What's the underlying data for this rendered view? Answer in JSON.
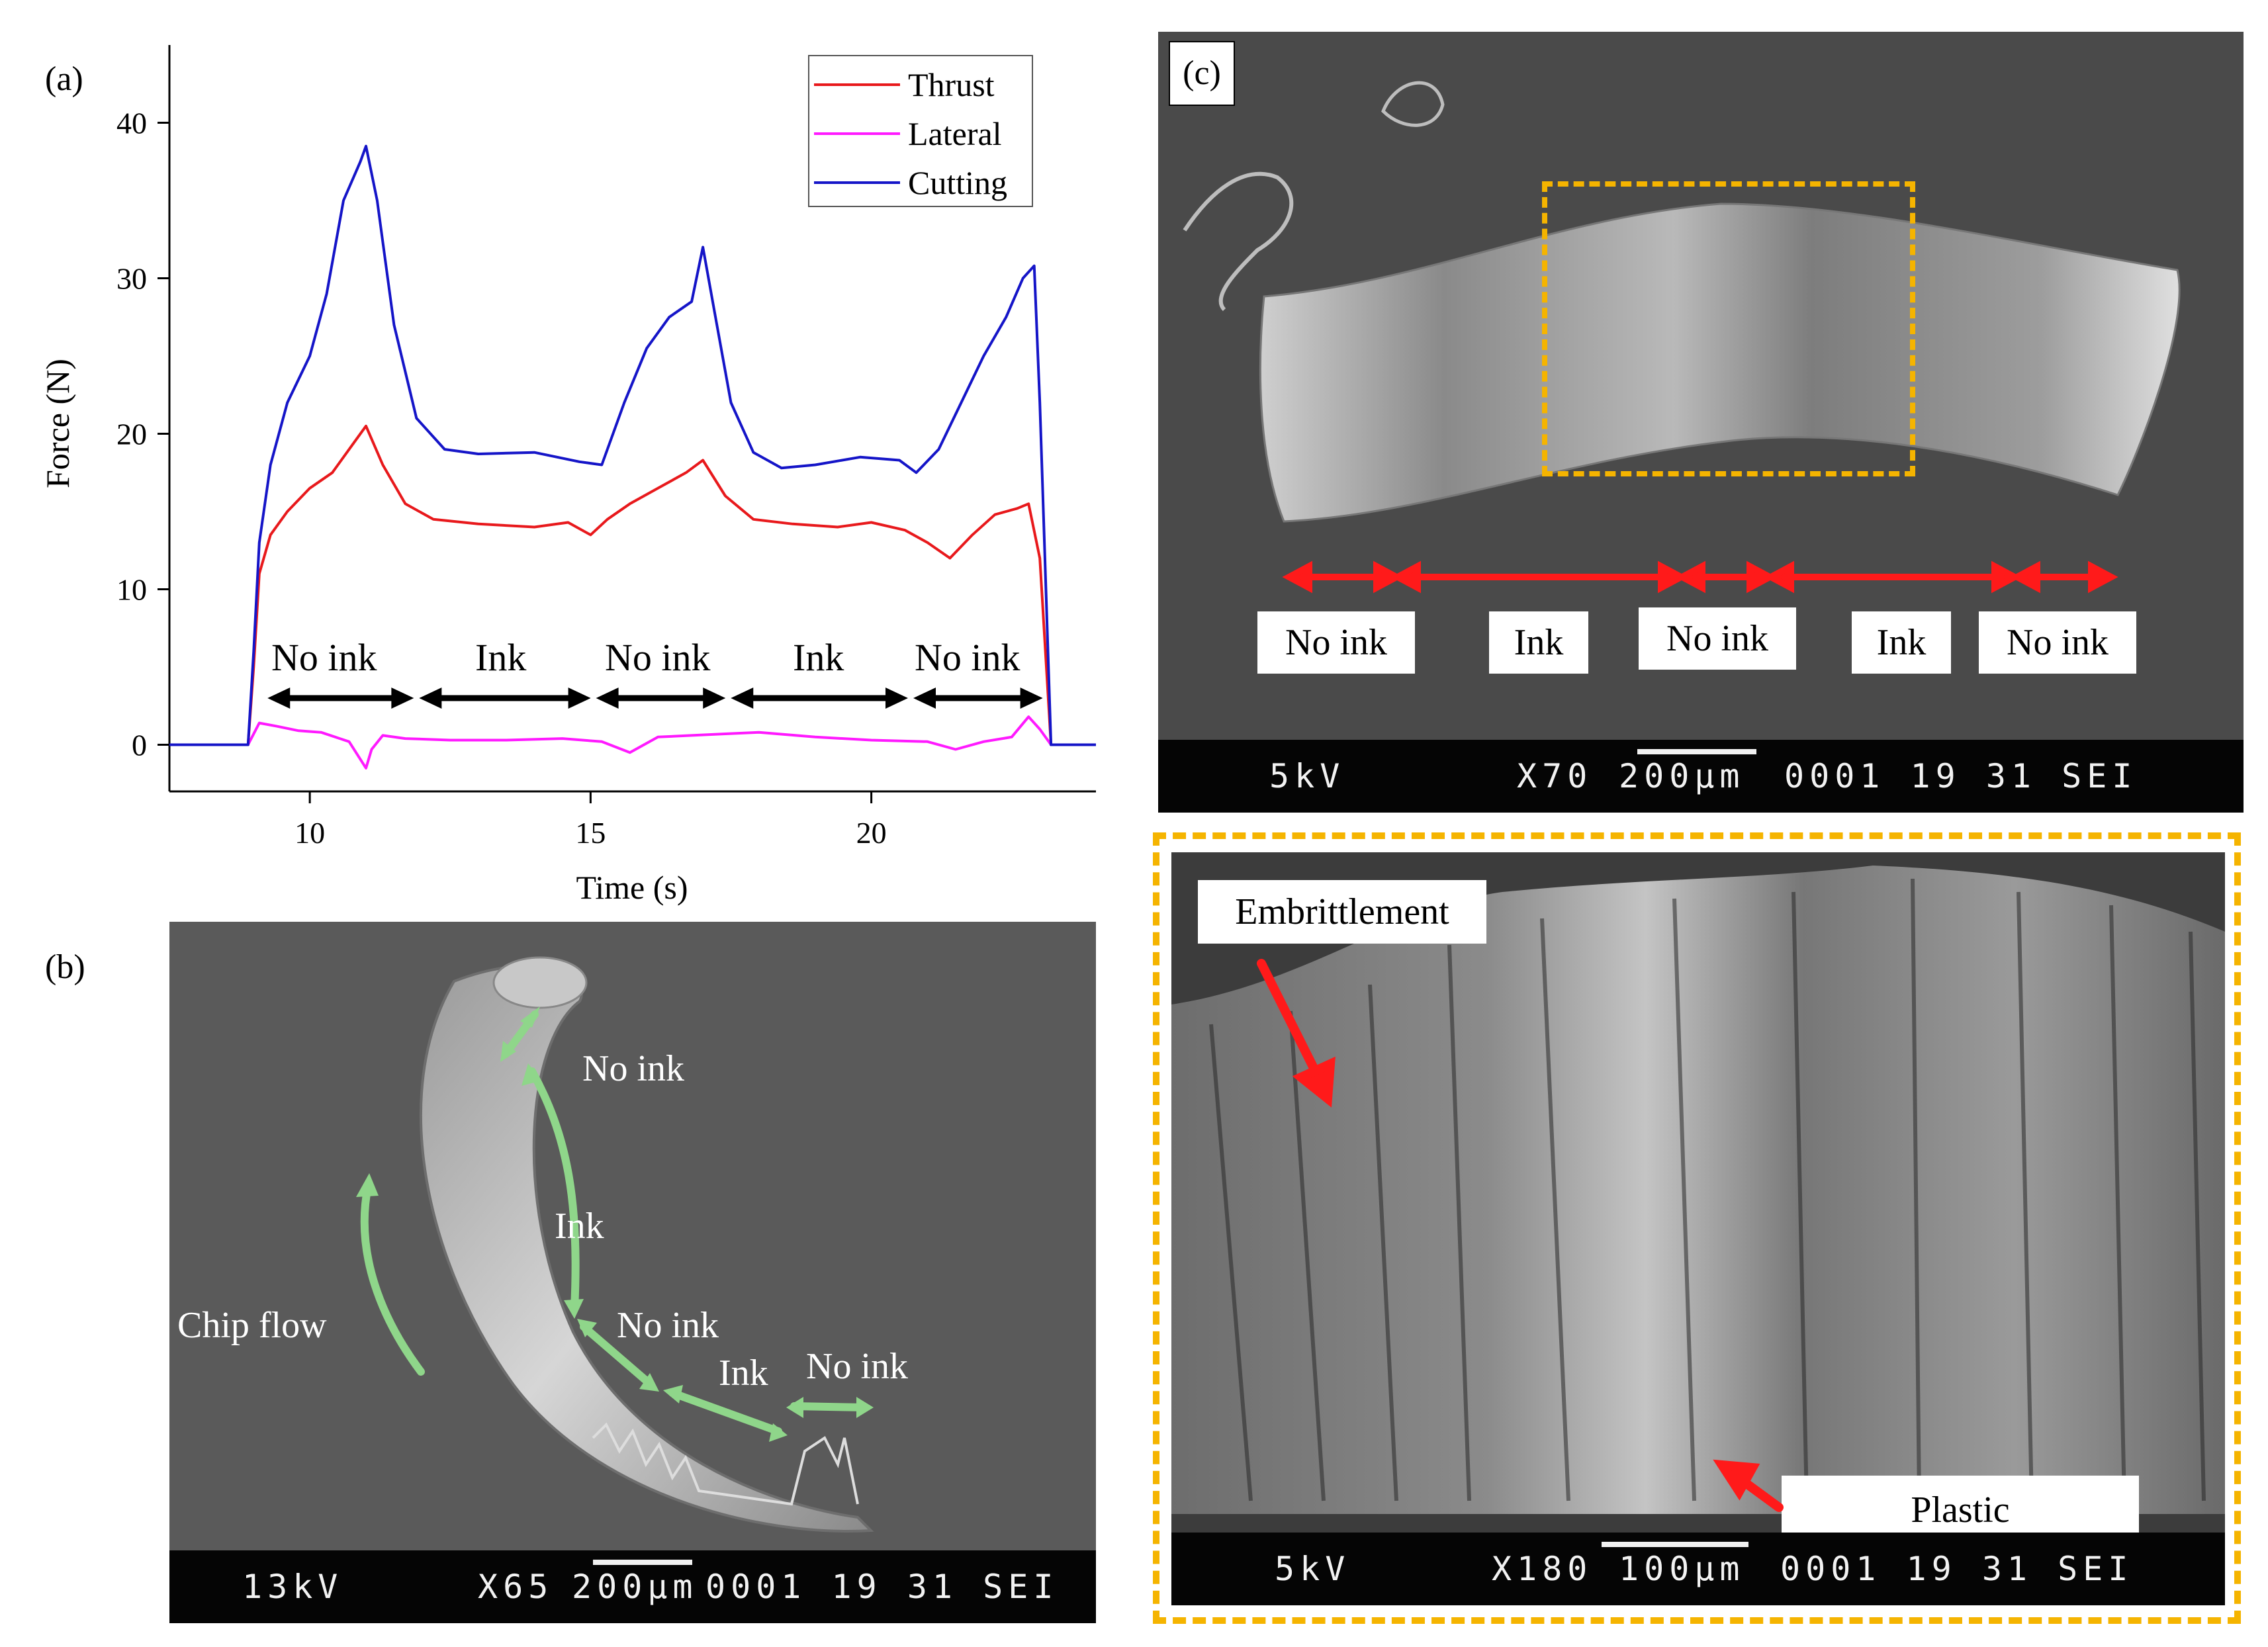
{
  "panel_a": {
    "label": "(a)",
    "interval_labels": [
      "No ink",
      "Ink",
      "No ink",
      "Ink",
      "No ink"
    ]
  },
  "panel_b": {
    "label": "(b)",
    "chip_flow": "Chip flow",
    "labels": [
      "No ink",
      "Ink",
      "No ink",
      "Ink",
      "No ink"
    ],
    "scale_bar": {
      "kv": "13kV",
      "mag": "X65",
      "scale": "200µm",
      "code": "0001  19 31  SEI"
    }
  },
  "panel_c": {
    "label": "(c)",
    "labels": [
      "No ink",
      "Ink",
      "No ink",
      "Ink",
      "No ink"
    ],
    "scale_bar": {
      "kv": "5kV",
      "mag": "X70",
      "scale": "200µm",
      "code": "0001  19 31  SEI"
    }
  },
  "panel_d": {
    "embrittlement": "Embrittlement",
    "plastic": "Plastic",
    "scale_bar": {
      "kv": "5kV",
      "mag": "X180",
      "scale": "100µm",
      "code": "0001  19 31  SEI"
    }
  },
  "colors": {
    "thrust": "#e8191c",
    "lateral": "#ff1aff",
    "cutting": "#1515c8",
    "highlight": "#f5b400",
    "arrow_red": "#ff1a1a",
    "arrow_green": "#8fd68a"
  },
  "chart_data": {
    "type": "line",
    "title": "",
    "xlabel": "Time (s)",
    "ylabel": "Force (N)",
    "xlim": [
      7.5,
      24
    ],
    "ylim": [
      -3,
      45
    ],
    "xticks": [
      10,
      15,
      20
    ],
    "yticks": [
      0,
      10,
      20,
      30,
      40
    ],
    "legend": {
      "placement": "top-right",
      "entries": [
        "Thrust",
        "Lateral",
        "Cutting"
      ]
    },
    "series": [
      {
        "name": "Thrust",
        "x": [
          7.5,
          8.9,
          9.0,
          9.1,
          9.3,
          9.6,
          10.0,
          10.4,
          10.8,
          11.0,
          11.3,
          11.7,
          12.2,
          13.0,
          14.0,
          14.6,
          15.0,
          15.3,
          15.7,
          16.2,
          16.7,
          17.0,
          17.4,
          17.9,
          18.6,
          19.4,
          20.0,
          20.6,
          21.0,
          21.4,
          21.8,
          22.2,
          22.6,
          22.8,
          23.0,
          23.2,
          24.0
        ],
        "values": [
          0,
          0,
          5,
          11,
          13.5,
          15,
          16.5,
          17.5,
          19.5,
          20.5,
          18,
          15.5,
          14.5,
          14.2,
          14.0,
          14.3,
          13.5,
          14.5,
          15.5,
          16.5,
          17.5,
          18.3,
          16.0,
          14.5,
          14.2,
          14.0,
          14.3,
          13.8,
          13.0,
          12.0,
          13.5,
          14.8,
          15.2,
          15.5,
          12.0,
          0,
          0
        ]
      },
      {
        "name": "Lateral",
        "x": [
          7.5,
          8.9,
          9.1,
          9.4,
          9.8,
          10.2,
          10.7,
          11.0,
          11.1,
          11.3,
          11.7,
          12.5,
          13.5,
          14.5,
          15.2,
          15.7,
          16.2,
          16.8,
          17.4,
          18.0,
          19.0,
          20.0,
          21.0,
          21.5,
          22.0,
          22.5,
          22.8,
          23.0,
          23.2,
          24.0
        ],
        "values": [
          0,
          0,
          1.4,
          1.2,
          0.9,
          0.8,
          0.2,
          -1.5,
          -0.3,
          0.6,
          0.4,
          0.3,
          0.3,
          0.4,
          0.2,
          -0.5,
          0.5,
          0.6,
          0.7,
          0.8,
          0.5,
          0.3,
          0.2,
          -0.3,
          0.2,
          0.5,
          1.8,
          1.0,
          0,
          0
        ]
      },
      {
        "name": "Cutting",
        "x": [
          7.5,
          8.9,
          9.0,
          9.1,
          9.3,
          9.6,
          10.0,
          10.3,
          10.6,
          10.9,
          11.0,
          11.2,
          11.5,
          11.9,
          12.4,
          13.0,
          14.0,
          14.8,
          15.2,
          15.6,
          16.0,
          16.4,
          16.8,
          17.0,
          17.2,
          17.5,
          17.9,
          18.4,
          19.0,
          19.8,
          20.5,
          20.8,
          21.2,
          21.6,
          22.0,
          22.4,
          22.7,
          22.9,
          23.0,
          23.2,
          24.0
        ],
        "values": [
          0,
          0,
          6,
          13,
          18,
          22,
          25,
          29,
          35,
          37.5,
          38.5,
          35,
          27,
          21,
          19,
          18.7,
          18.8,
          18.2,
          18.0,
          22,
          25.5,
          27.5,
          28.5,
          32.0,
          28,
          22,
          18.8,
          17.8,
          18.0,
          18.5,
          18.3,
          17.5,
          19,
          22,
          25,
          27.5,
          30.0,
          30.8,
          22,
          0,
          0
        ]
      }
    ]
  }
}
